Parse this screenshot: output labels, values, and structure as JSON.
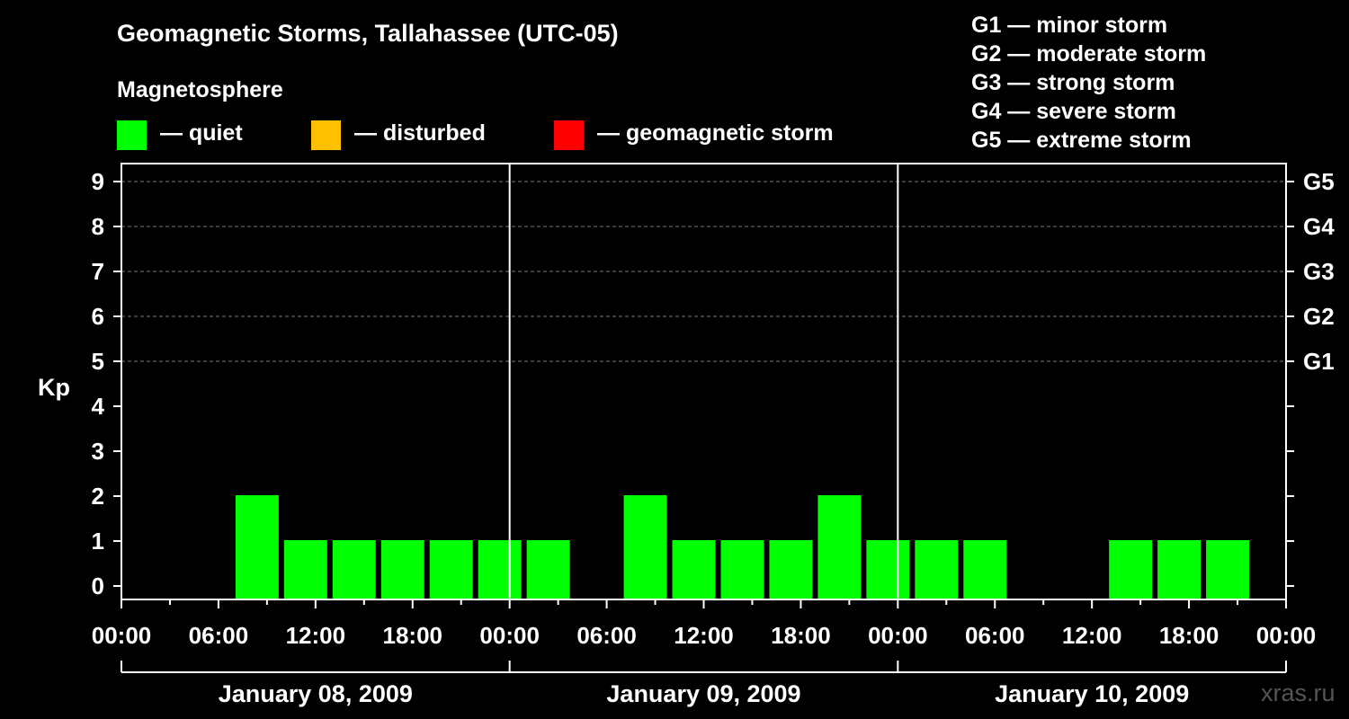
{
  "chart_data": {
    "type": "bar",
    "title": "Geomagnetic Storms, Tallahassee (UTC-05)",
    "legend_title": "Magnetosphere",
    "legend": [
      {
        "label": "— quiet",
        "color": "#00ff00"
      },
      {
        "label": "— disturbed",
        "color": "#ffc000"
      },
      {
        "label": "— geomagnetic storm",
        "color": "#ff0000"
      }
    ],
    "g_scale": [
      "G1 — minor storm",
      "G2 — moderate storm",
      "G3 — strong storm",
      "G4 — severe storm",
      "G5 — extreme storm"
    ],
    "ylabel": "Kp",
    "ylim": [
      0,
      9
    ],
    "yticks": [
      "0",
      "1",
      "2",
      "3",
      "4",
      "5",
      "6",
      "7",
      "8",
      "9"
    ],
    "right_ticks": [
      {
        "kp": 5,
        "label": "G1"
      },
      {
        "kp": 6,
        "label": "G2"
      },
      {
        "kp": 7,
        "label": "G3"
      },
      {
        "kp": 8,
        "label": "G4"
      },
      {
        "kp": 9,
        "label": "G5"
      }
    ],
    "xticks": [
      "00:00",
      "06:00",
      "12:00",
      "18:00",
      "00:00",
      "06:00",
      "12:00",
      "18:00",
      "00:00",
      "06:00",
      "12:00",
      "18:00",
      "00:00"
    ],
    "days": [
      "January 08, 2009",
      "January 09, 2009",
      "January 10, 2009"
    ],
    "grid": "dashed horizontal at Kp 5-9",
    "bars": [
      {
        "start_hour": 7,
        "value": 2
      },
      {
        "start_hour": 10,
        "value": 1
      },
      {
        "start_hour": 13,
        "value": 1
      },
      {
        "start_hour": 16,
        "value": 1
      },
      {
        "start_hour": 19,
        "value": 1
      },
      {
        "start_hour": 22,
        "value": 1
      },
      {
        "start_hour": 25,
        "value": 1
      },
      {
        "start_hour": 31,
        "value": 2
      },
      {
        "start_hour": 34,
        "value": 1
      },
      {
        "start_hour": 37,
        "value": 1
      },
      {
        "start_hour": 40,
        "value": 1
      },
      {
        "start_hour": 43,
        "value": 2
      },
      {
        "start_hour": 46,
        "value": 1
      },
      {
        "start_hour": 49,
        "value": 1
      },
      {
        "start_hour": 52,
        "value": 1
      },
      {
        "start_hour": 61,
        "value": 1
      },
      {
        "start_hour": 64,
        "value": 1
      },
      {
        "start_hour": 67,
        "value": 1
      }
    ],
    "bar_color": "#00ff00"
  },
  "watermark": "xras.ru"
}
